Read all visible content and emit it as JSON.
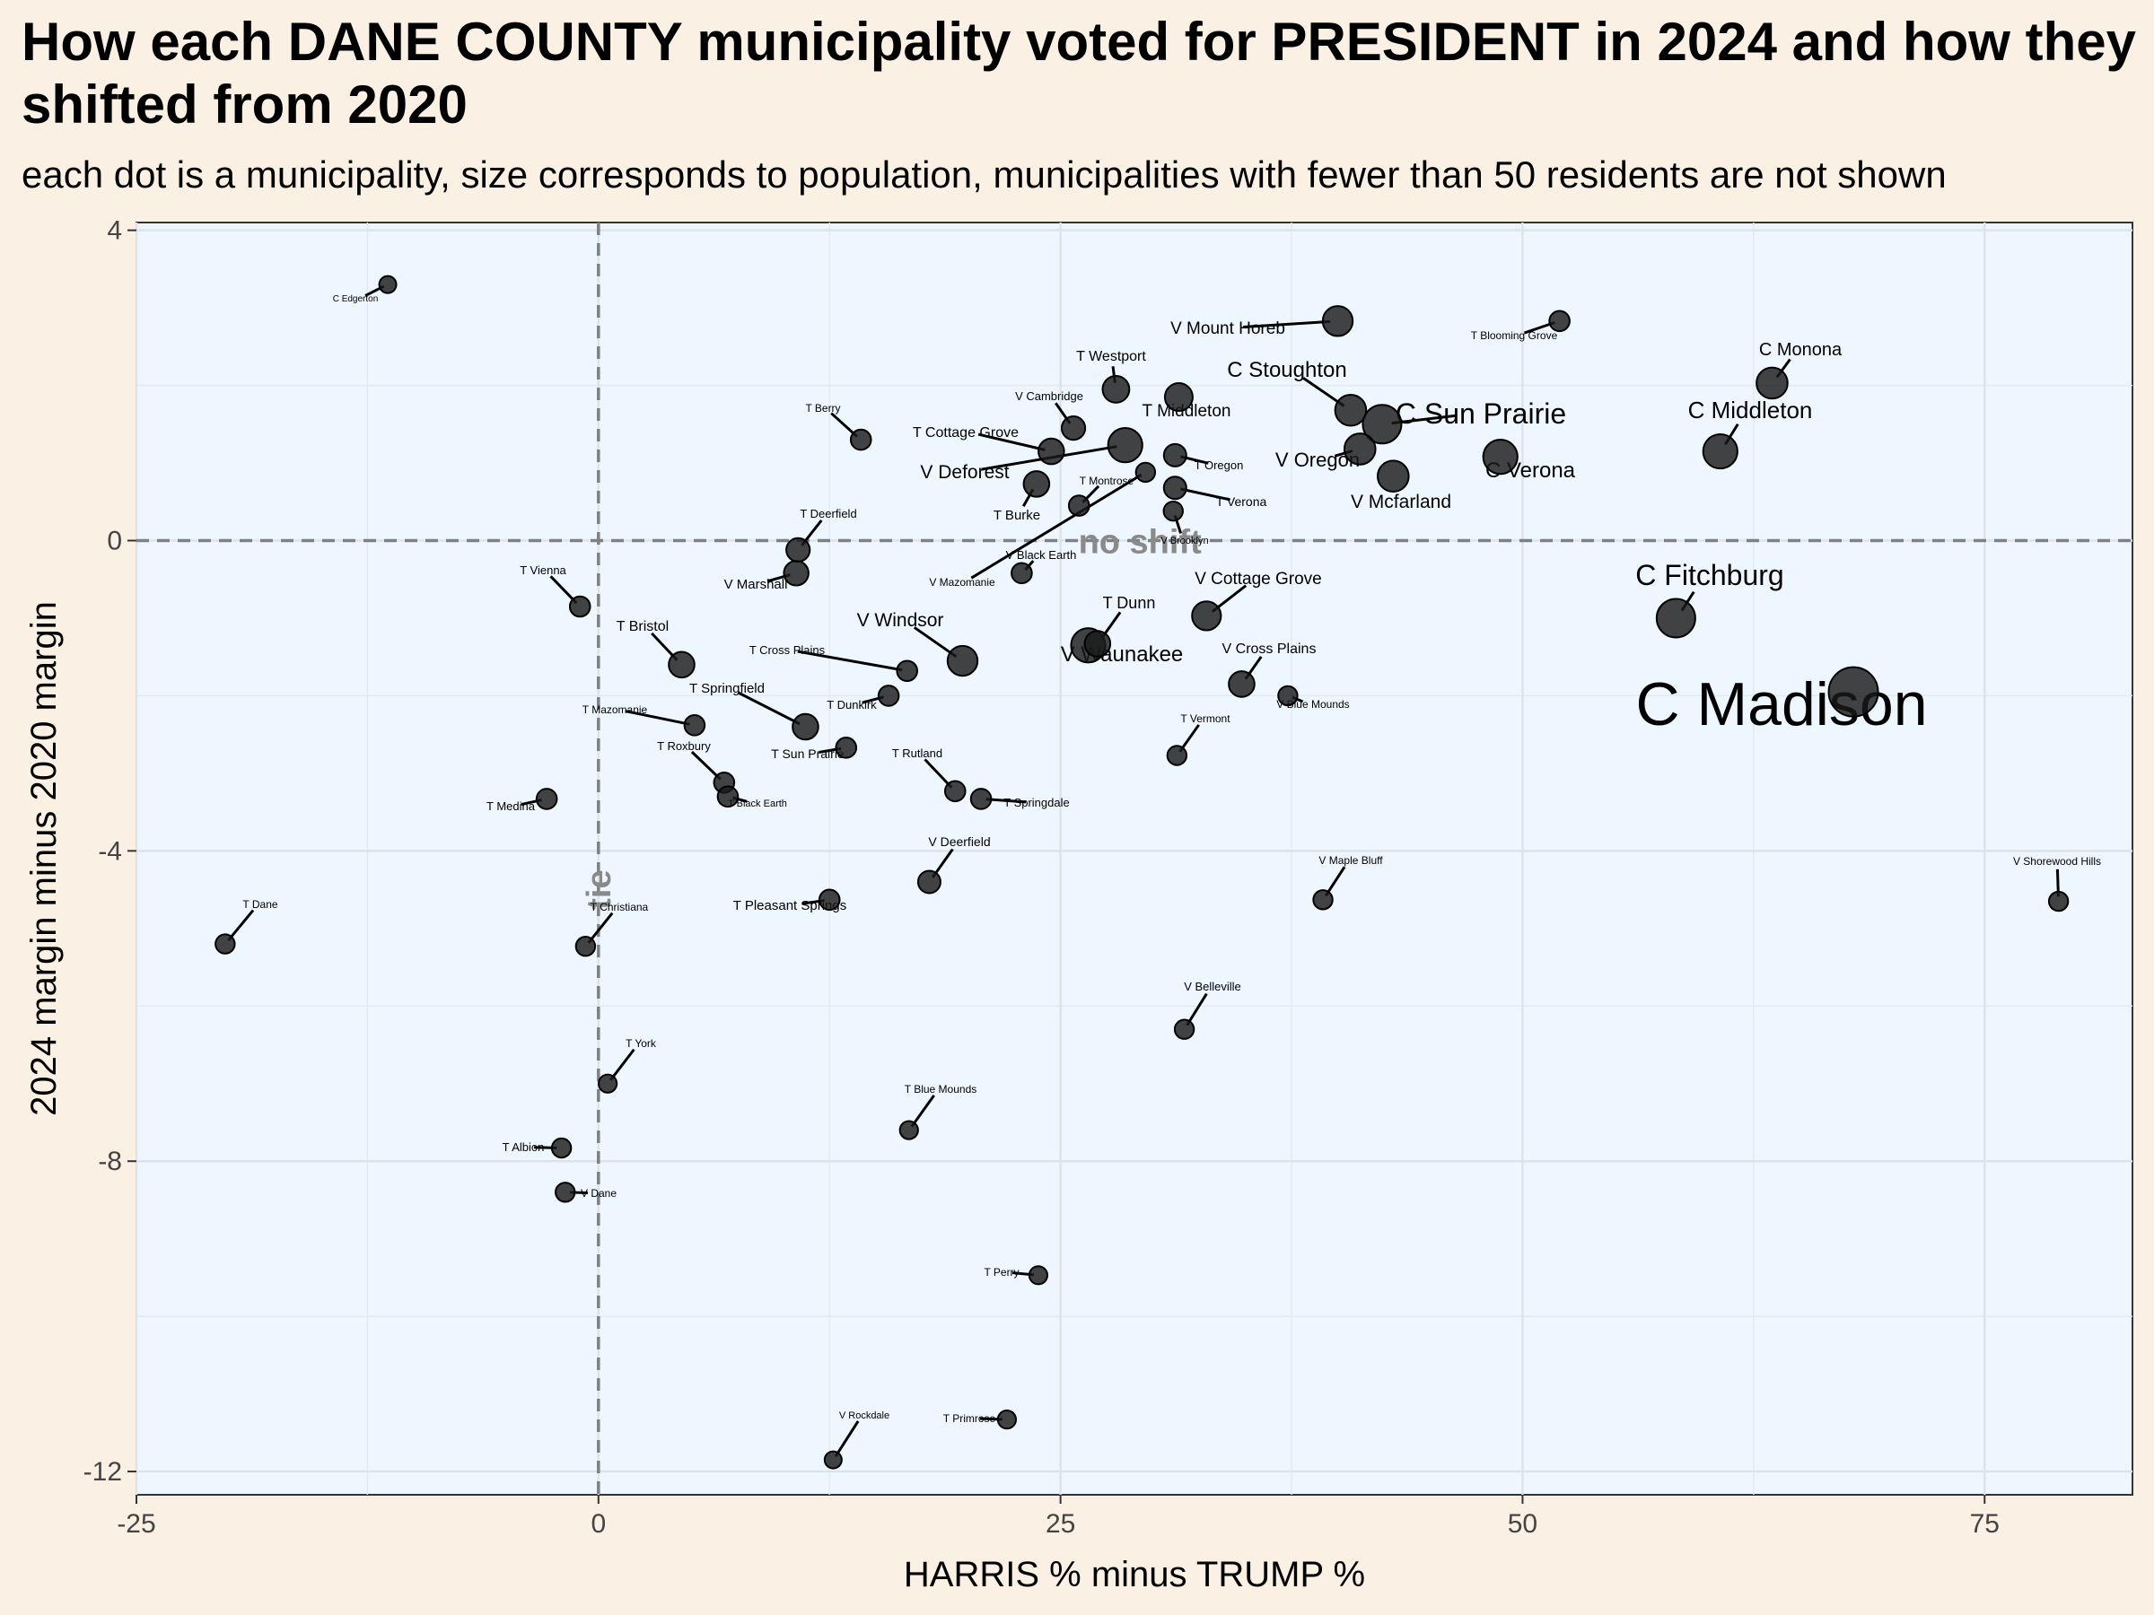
{
  "title": "How each DANE COUNTY municipality voted for PRESIDENT in 2024 and how they shifted from 2020",
  "subtitle": "each dot is a municipality, size corresponds to population, municipalities with fewer than 50 residents are not shown",
  "colors": {
    "background": "#fbf0e4",
    "panel": "#eef7ff",
    "point": "#1a1a1a",
    "reference": "#808080"
  },
  "chart_data": {
    "type": "scatter",
    "xlabel": "HARRIS % minus TRUMP %",
    "ylabel": "2024 margin minus 2020 margin",
    "xlim": [
      -25,
      83
    ],
    "ylim": [
      -12.3,
      4.1
    ],
    "x_ticks": [
      -25,
      0,
      25,
      50,
      75
    ],
    "y_ticks": [
      -12,
      -8,
      -4,
      0,
      4
    ],
    "x_tick_labels": [
      "-25",
      "0",
      "25",
      "50",
      "75"
    ],
    "y_tick_labels": [
      "-12",
      "-8",
      "-4",
      "0",
      "4"
    ],
    "grid": true,
    "reference_lines": [
      {
        "axis": "x",
        "value": 0,
        "label": "tie"
      },
      {
        "axis": "y",
        "value": 0,
        "label": "no shift"
      }
    ],
    "points": [
      {
        "name": "C Madison",
        "x": 67.9,
        "y": -1.95,
        "size": 4
      },
      {
        "name": "C Fitchburg",
        "x": 58.3,
        "y": -1.0,
        "size": 3
      },
      {
        "name": "C Sun Prairie",
        "x": 42.4,
        "y": 1.5,
        "size": 3
      },
      {
        "name": "C Middleton",
        "x": 60.7,
        "y": 1.15,
        "size": 2.6
      },
      {
        "name": "C Verona",
        "x": 48.8,
        "y": 1.08,
        "size": 2.6
      },
      {
        "name": "C Stoughton",
        "x": 40.7,
        "y": 1.68,
        "size": 2.3
      },
      {
        "name": "C Monona",
        "x": 63.5,
        "y": 2.03,
        "size": 2.3
      },
      {
        "name": "V Oregon",
        "x": 41.2,
        "y": 1.18,
        "size": 2.3
      },
      {
        "name": "V Mcfarland",
        "x": 43.0,
        "y": 0.83,
        "size": 2.3
      },
      {
        "name": "V Waunakee",
        "x": 26.5,
        "y": -1.35,
        "size": 2.6
      },
      {
        "name": "V Deforest",
        "x": 28.5,
        "y": 1.23,
        "size": 2.6
      },
      {
        "name": "V Mount Horeb",
        "x": 40.0,
        "y": 2.83,
        "size": 2.2
      },
      {
        "name": "V Windsor",
        "x": 19.7,
        "y": -1.55,
        "size": 2.2
      },
      {
        "name": "V Cottage Grove",
        "x": 32.9,
        "y": -0.97,
        "size": 2.1
      },
      {
        "name": "T Middleton",
        "x": 31.4,
        "y": 1.85,
        "size": 2.0
      },
      {
        "name": "T Westport",
        "x": 28.0,
        "y": 1.95,
        "size": 1.9
      },
      {
        "name": "V Cross Plains",
        "x": 34.8,
        "y": -1.85,
        "size": 1.8
      },
      {
        "name": "T Dunn",
        "x": 27.0,
        "y": -1.33,
        "size": 1.8
      },
      {
        "name": "T Burke",
        "x": 23.7,
        "y": 0.73,
        "size": 1.8
      },
      {
        "name": "T Cottage Grove",
        "x": 24.5,
        "y": 1.15,
        "size": 1.8
      },
      {
        "name": "T Bristol",
        "x": 4.5,
        "y": -1.6,
        "size": 1.8
      },
      {
        "name": "T Springfield",
        "x": 11.2,
        "y": -2.4,
        "size": 1.8
      },
      {
        "name": "V Marshall",
        "x": 10.7,
        "y": -0.42,
        "size": 1.7
      },
      {
        "name": "T Deerfield",
        "x": 10.8,
        "y": -0.12,
        "size": 1.6
      },
      {
        "name": "V Cambridge",
        "x": 25.7,
        "y": 1.45,
        "size": 1.6
      },
      {
        "name": "T Oregon",
        "x": 31.2,
        "y": 1.1,
        "size": 1.5
      },
      {
        "name": "T Verona",
        "x": 31.2,
        "y": 0.68,
        "size": 1.5
      },
      {
        "name": "V Deerfield",
        "x": 17.9,
        "y": -4.4,
        "size": 1.5
      },
      {
        "name": "T Blooming Grove",
        "x": 52.0,
        "y": 2.83,
        "size": 1.3
      },
      {
        "name": "T Berry",
        "x": 14.2,
        "y": 1.3,
        "size": 1.3
      },
      {
        "name": "T Montrose",
        "x": 26.0,
        "y": 0.45,
        "size": 1.3
      },
      {
        "name": "V Brooklyn",
        "x": 31.1,
        "y": 0.38,
        "size": 1.2
      },
      {
        "name": "V Black Earth",
        "x": 22.9,
        "y": -0.42,
        "size": 1.3
      },
      {
        "name": "T Vienna",
        "x": -1.0,
        "y": -0.85,
        "size": 1.3
      },
      {
        "name": "T Cross Plains",
        "x": 16.7,
        "y": -1.68,
        "size": 1.3
      },
      {
        "name": "T Dunkirk",
        "x": 15.7,
        "y": -2.0,
        "size": 1.3
      },
      {
        "name": "V Mazomanie",
        "x": 29.6,
        "y": 0.88,
        "size": 1.2
      },
      {
        "name": "T Mazomanie",
        "x": 5.2,
        "y": -2.38,
        "size": 1.3
      },
      {
        "name": "T Sun Prairie",
        "x": 13.4,
        "y": -2.67,
        "size": 1.3
      },
      {
        "name": "T Roxbury",
        "x": 6.8,
        "y": -3.12,
        "size": 1.3
      },
      {
        "name": "T Black Earth",
        "x": 7.0,
        "y": -3.3,
        "size": 1.3
      },
      {
        "name": "T Rutland",
        "x": 19.3,
        "y": -3.23,
        "size": 1.3
      },
      {
        "name": "T Springdale",
        "x": 20.7,
        "y": -3.33,
        "size": 1.3
      },
      {
        "name": "T Medina",
        "x": -2.8,
        "y": -3.33,
        "size": 1.3
      },
      {
        "name": "V Blue Mounds",
        "x": 37.3,
        "y": -2.0,
        "size": 1.2
      },
      {
        "name": "T Vermont",
        "x": 31.3,
        "y": -2.77,
        "size": 1.2
      },
      {
        "name": "T Pleasant Springs",
        "x": 12.5,
        "y": -4.63,
        "size": 1.3
      },
      {
        "name": "V Maple Bluff",
        "x": 39.2,
        "y": -4.63,
        "size": 1.2
      },
      {
        "name": "V Shorewood Hills",
        "x": 79.0,
        "y": -4.65,
        "size": 1.2
      },
      {
        "name": "T Dane",
        "x": -20.2,
        "y": -5.2,
        "size": 1.2
      },
      {
        "name": "T Christiana",
        "x": -0.7,
        "y": -5.23,
        "size": 1.2
      },
      {
        "name": "V Belleville",
        "x": 31.7,
        "y": -6.3,
        "size": 1.2
      },
      {
        "name": "T York",
        "x": 0.5,
        "y": -7.0,
        "size": 1.1
      },
      {
        "name": "T Blue Mounds",
        "x": 16.8,
        "y": -7.6,
        "size": 1.1
      },
      {
        "name": "T Albion",
        "x": -2.0,
        "y": -7.83,
        "size": 1.2
      },
      {
        "name": "V Dane",
        "x": -1.8,
        "y": -8.4,
        "size": 1.2
      },
      {
        "name": "T Perry",
        "x": 23.8,
        "y": -9.47,
        "size": 1.1
      },
      {
        "name": "T Primrose",
        "x": 22.1,
        "y": -11.33,
        "size": 1.1
      },
      {
        "name": "V Rockdale",
        "x": 12.7,
        "y": -11.85,
        "size": 1.0
      },
      {
        "name": "C Edgerton",
        "x": -11.4,
        "y": 3.3,
        "size": 1.0
      }
    ]
  }
}
